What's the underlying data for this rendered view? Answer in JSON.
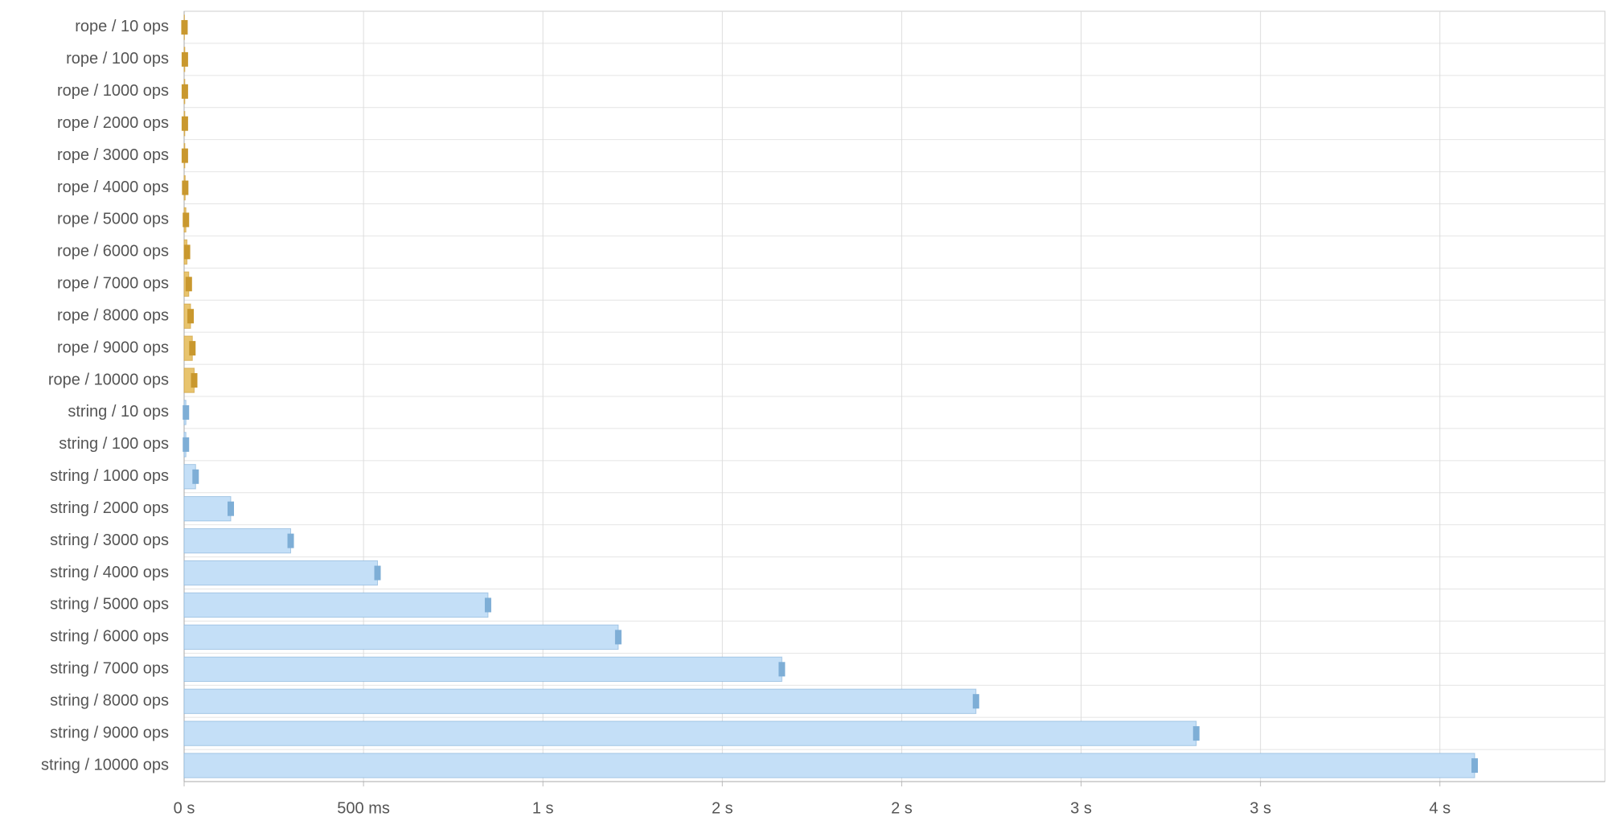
{
  "chart_data": {
    "type": "hbar",
    "categories": [
      "rope / 10 ops",
      "rope / 100 ops",
      "rope / 1000 ops",
      "rope / 2000 ops",
      "rope / 3000 ops",
      "rope / 4000 ops",
      "rope / 5000 ops",
      "rope / 6000 ops",
      "rope / 7000 ops",
      "rope / 8000 ops",
      "rope / 9000 ops",
      "rope / 10000 ops",
      "string / 10 ops",
      "string / 100 ops",
      "string / 1000 ops",
      "string / 2000 ops",
      "string / 3000 ops",
      "string / 4000 ops",
      "string / 5000 ops",
      "string / 6000 ops",
      "string / 7000 ops",
      "string / 8000 ops",
      "string / 9000 ops",
      "string / 10000 ops"
    ],
    "values": [
      1,
      2,
      2,
      2,
      2,
      3,
      5,
      8,
      13,
      18,
      23,
      28,
      5,
      5,
      32,
      130,
      297,
      539,
      847,
      1210,
      1666,
      2207,
      2821,
      3597
    ],
    "colors": [
      "#e8c46e",
      "#e8c46e",
      "#e8c46e",
      "#e8c46e",
      "#e8c46e",
      "#e8c46e",
      "#e8c46e",
      "#e8c46e",
      "#e8c46e",
      "#e8c46e",
      "#e8c46e",
      "#e8c46e",
      "#c4dff7",
      "#c4dff7",
      "#c4dff7",
      "#c4dff7",
      "#c4dff7",
      "#c4dff7",
      "#c4dff7",
      "#c4dff7",
      "#c4dff7",
      "#c4dff7",
      "#c4dff7",
      "#c4dff7"
    ],
    "marker_colors": [
      "#c9982e",
      "#c9982e",
      "#c9982e",
      "#c9982e",
      "#c9982e",
      "#c9982e",
      "#c9982e",
      "#c9982e",
      "#c9982e",
      "#c9982e",
      "#c9982e",
      "#c9982e",
      "#7eaed6",
      "#7eaed6",
      "#7eaed6",
      "#7eaed6",
      "#7eaed6",
      "#7eaed6",
      "#7eaed6",
      "#7eaed6",
      "#7eaed6",
      "#7eaed6",
      "#7eaed6",
      "#7eaed6"
    ],
    "xlim": [
      0,
      3960
    ],
    "xticks": [
      {
        "value": 0,
        "label": "0 s"
      },
      {
        "value": 500,
        "label": "500 ms"
      },
      {
        "value": 1000,
        "label": "1 s"
      },
      {
        "value": 1500,
        "label": "2 s"
      },
      {
        "value": 2000,
        "label": "2 s"
      },
      {
        "value": 2500,
        "label": "3 s"
      },
      {
        "value": 3000,
        "label": "3 s"
      },
      {
        "value": 3500,
        "label": "4 s"
      }
    ],
    "grid": true
  }
}
